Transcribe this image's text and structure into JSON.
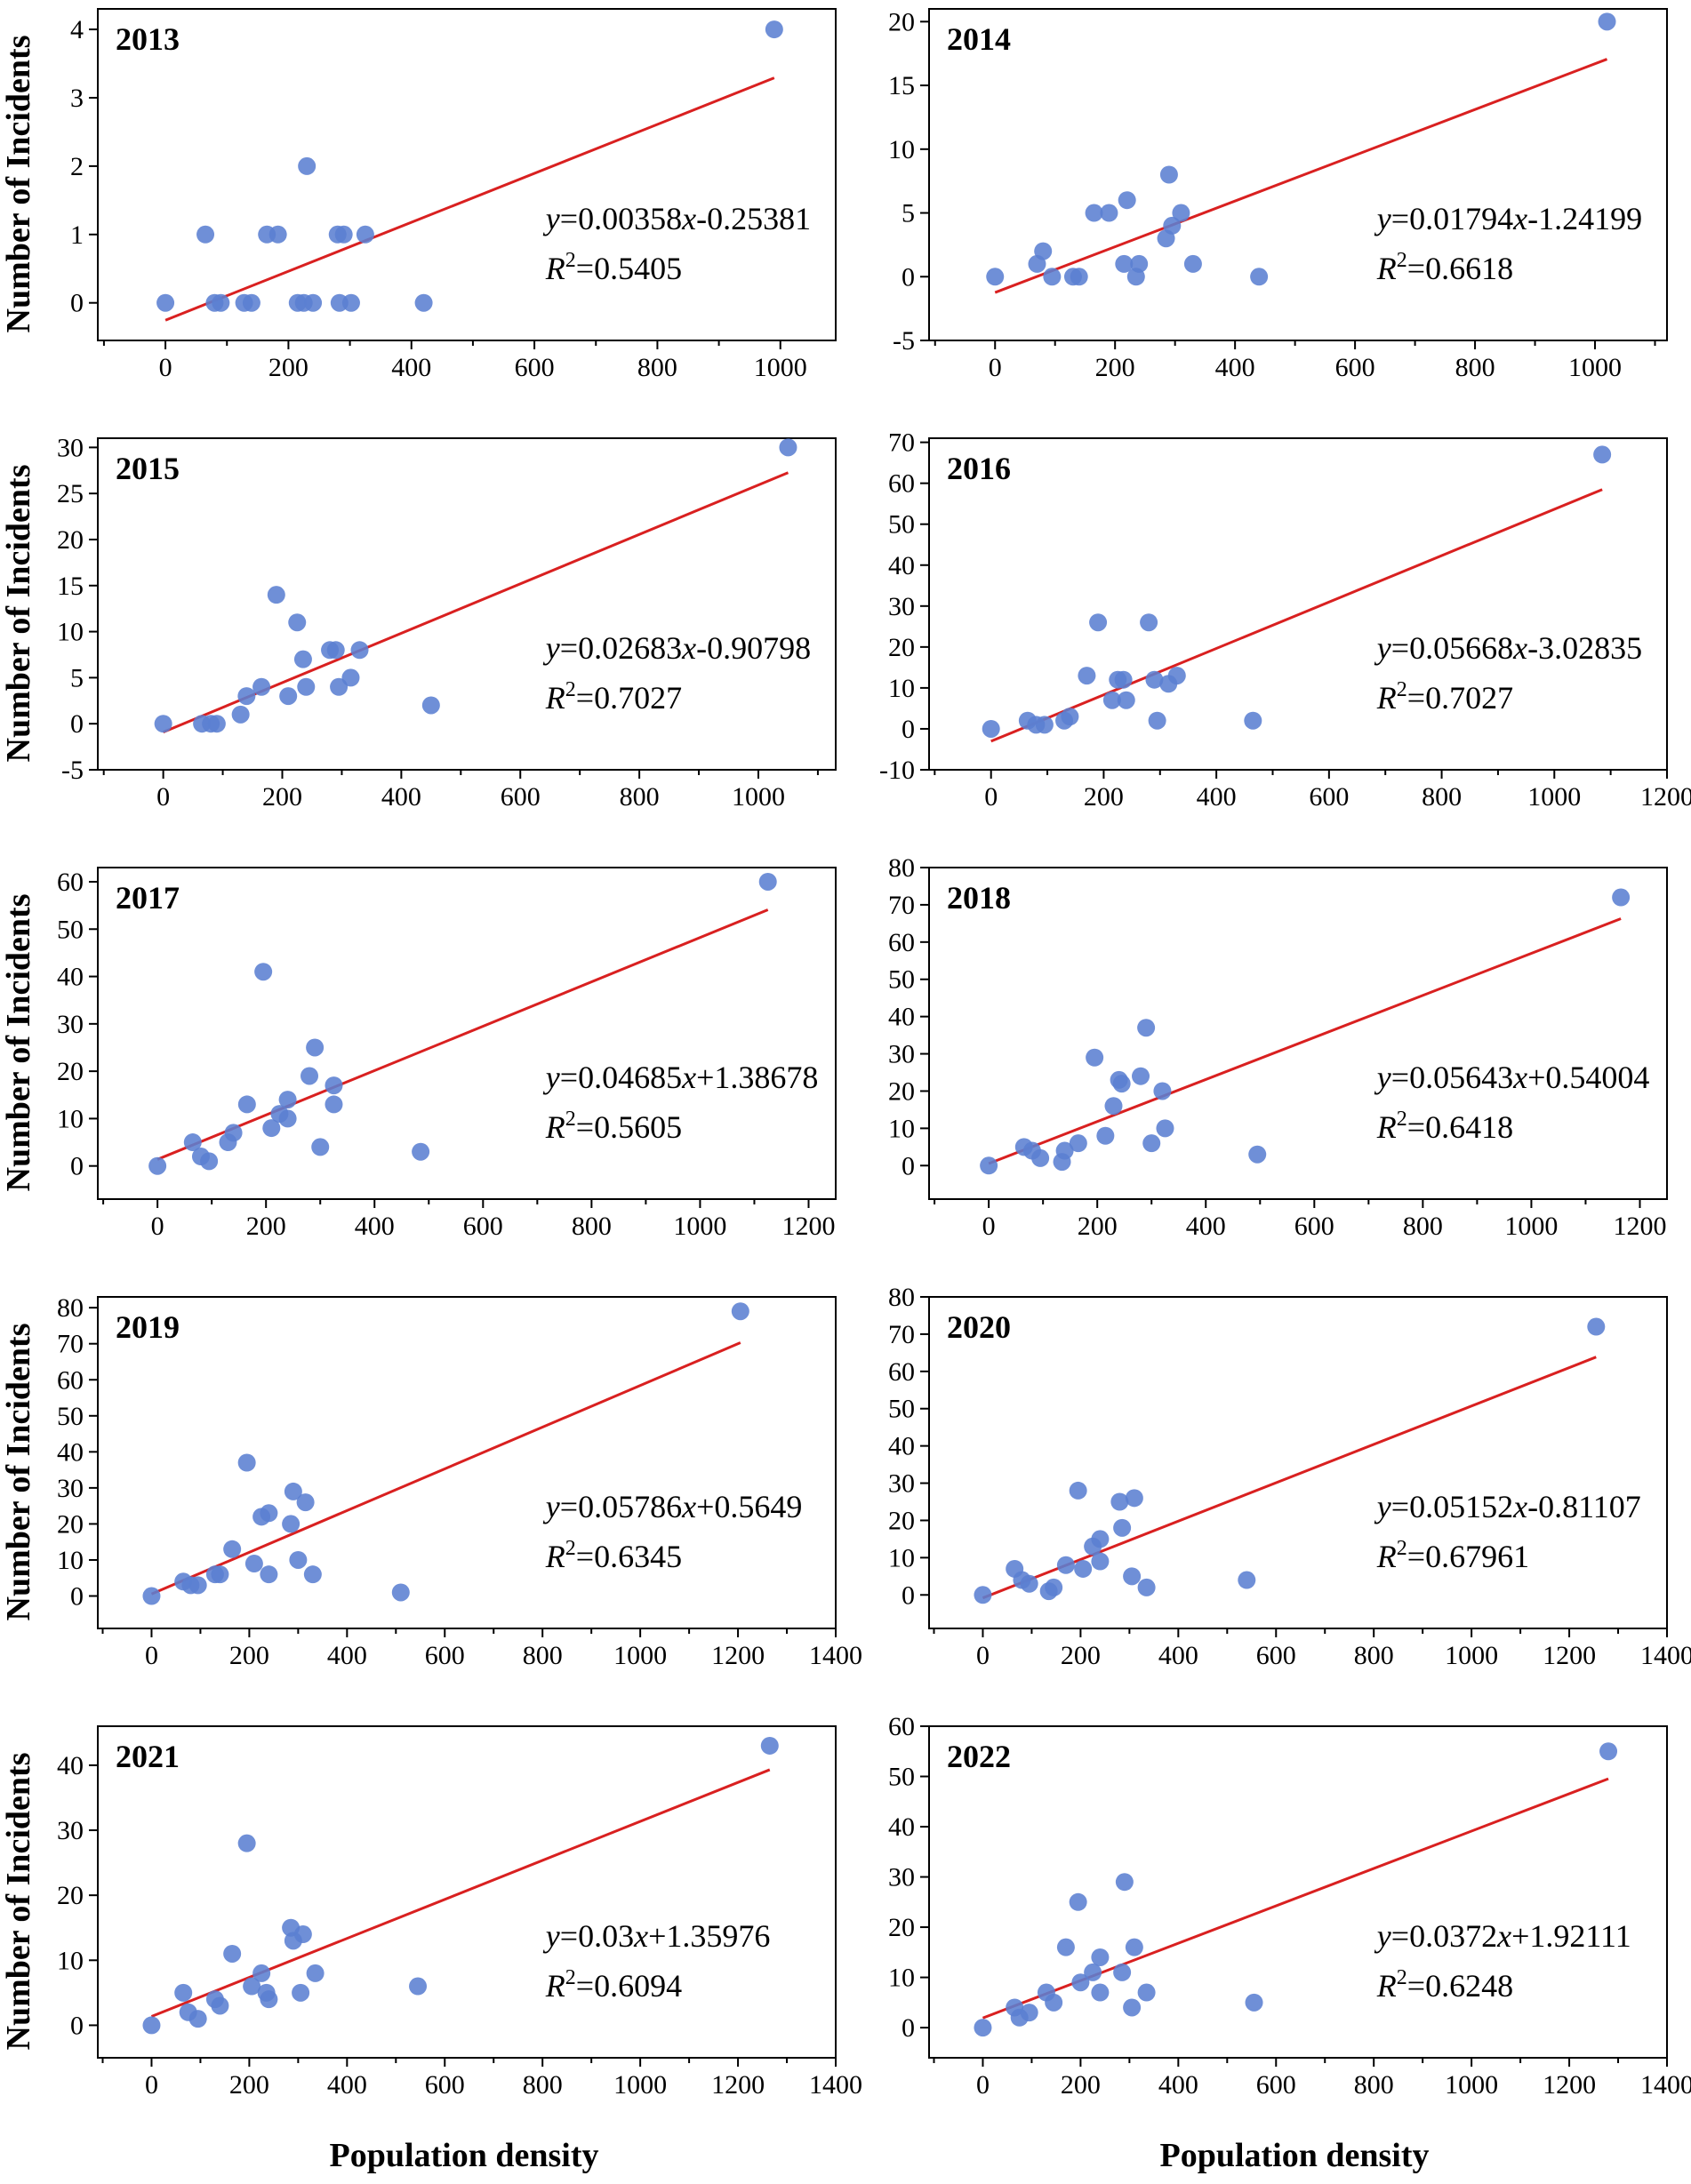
{
  "figure": {
    "ylabel": "Number of Incidents",
    "xlabel": "Population density"
  },
  "colors": {
    "point": "#5b7fd1",
    "fit": "#d92020",
    "axis": "#000000"
  },
  "chart_data": [
    {
      "type": "scatter",
      "title": "2013",
      "xlim": [
        -110,
        1090
      ],
      "ylim": [
        -0.55,
        4.3
      ],
      "xticks": [
        0,
        200,
        400,
        600,
        800,
        1000
      ],
      "yticks": [
        0,
        1,
        2,
        3,
        4
      ],
      "x": [
        0,
        65,
        80,
        90,
        128,
        140,
        165,
        183,
        215,
        225,
        230,
        240,
        280,
        283,
        290,
        302,
        325,
        420,
        990
      ],
      "y": [
        0,
        1,
        0,
        0,
        0,
        0,
        1,
        1,
        0,
        0,
        2,
        0,
        1,
        0,
        1,
        0,
        1,
        0,
        4
      ],
      "fit": {
        "slope": 0.00358,
        "intercept": -0.25381,
        "x_range": [
          0,
          990
        ]
      },
      "equation": {
        "y": "y",
        "rhs": "=0.00358",
        "x": "x",
        "tail": "-0.25381"
      },
      "r2": {
        "r": "R",
        "sup": "2",
        "value": "=0.5405"
      }
    },
    {
      "type": "scatter",
      "title": "2014",
      "xlim": [
        -110,
        1120
      ],
      "ylim": [
        -5,
        21
      ],
      "xticks": [
        0,
        200,
        400,
        600,
        800,
        1000
      ],
      "yticks": [
        -5,
        0,
        5,
        10,
        15,
        20
      ],
      "x": [
        0,
        70,
        80,
        95,
        130,
        140,
        165,
        190,
        215,
        220,
        235,
        240,
        285,
        290,
        295,
        310,
        330,
        440,
        1020
      ],
      "y": [
        0,
        1,
        2,
        0,
        0,
        0,
        5,
        5,
        1,
        6,
        0,
        1,
        3,
        8,
        4,
        5,
        1,
        0,
        20
      ],
      "fit": {
        "slope": 0.01794,
        "intercept": -1.24199,
        "x_range": [
          0,
          1020
        ]
      },
      "equation": {
        "y": "y",
        "rhs": "=0.01794",
        "x": "x",
        "tail": "-1.24199"
      },
      "r2": {
        "r": "R",
        "sup": "2",
        "value": "=0.6618"
      }
    },
    {
      "type": "scatter",
      "title": "2015",
      "xlim": [
        -110,
        1130
      ],
      "ylim": [
        -5,
        31
      ],
      "xticks": [
        0,
        200,
        400,
        600,
        800,
        1000
      ],
      "yticks": [
        -5,
        0,
        5,
        10,
        15,
        20,
        25,
        30
      ],
      "x": [
        0,
        65,
        80,
        90,
        130,
        140,
        165,
        190,
        210,
        225,
        235,
        240,
        280,
        290,
        295,
        315,
        330,
        450,
        1050
      ],
      "y": [
        0,
        0,
        0,
        0,
        1,
        3,
        4,
        14,
        3,
        11,
        7,
        4,
        8,
        8,
        4,
        5,
        8,
        2,
        30
      ],
      "fit": {
        "slope": 0.02683,
        "intercept": -0.90798,
        "x_range": [
          0,
          1050
        ]
      },
      "equation": {
        "y": "y",
        "rhs": "=0.02683",
        "x": "x",
        "tail": "-0.90798"
      },
      "r2": {
        "r": "R",
        "sup": "2",
        "value": "=0.7027"
      }
    },
    {
      "type": "scatter",
      "title": "2016",
      "xlim": [
        -110,
        1200
      ],
      "ylim": [
        -10,
        71
      ],
      "xticks": [
        0,
        200,
        400,
        600,
        800,
        1000,
        1200
      ],
      "yticks": [
        -10,
        0,
        10,
        20,
        30,
        40,
        50,
        60,
        70
      ],
      "x": [
        0,
        65,
        80,
        95,
        130,
        140,
        170,
        190,
        215,
        225,
        235,
        240,
        280,
        290,
        295,
        315,
        330,
        465,
        1085
      ],
      "y": [
        0,
        2,
        1,
        1,
        2,
        3,
        13,
        26,
        7,
        12,
        12,
        7,
        26,
        12,
        2,
        11,
        13,
        2,
        67
      ],
      "fit": {
        "slope": 0.05668,
        "intercept": -3.02835,
        "x_range": [
          0,
          1085
        ]
      },
      "equation": {
        "y": "y",
        "rhs": "=0.05668",
        "x": "x",
        "tail": "-3.02835"
      },
      "r2": {
        "r": "R",
        "sup": "2",
        "value": "=0.7027"
      }
    },
    {
      "type": "scatter",
      "title": "2017",
      "xlim": [
        -110,
        1250
      ],
      "ylim": [
        -7,
        63
      ],
      "xticks": [
        0,
        200,
        400,
        600,
        800,
        1000,
        1200
      ],
      "yticks": [
        0,
        10,
        20,
        30,
        40,
        50,
        60
      ],
      "x": [
        0,
        65,
        80,
        95,
        130,
        140,
        165,
        195,
        210,
        225,
        240,
        240,
        280,
        290,
        300,
        325,
        325,
        485,
        1125
      ],
      "y": [
        0,
        5,
        2,
        1,
        5,
        7,
        13,
        41,
        8,
        11,
        10,
        14,
        19,
        25,
        4,
        17,
        13,
        3,
        60
      ],
      "fit": {
        "slope": 0.04685,
        "intercept": 1.38678,
        "x_range": [
          0,
          1125
        ]
      },
      "equation": {
        "y": "y",
        "rhs": "=0.04685",
        "x": "x",
        "tail": "+1.38678"
      },
      "r2": {
        "r": "R",
        "sup": "2",
        "value": "=0.5605"
      }
    },
    {
      "type": "scatter",
      "title": "2018",
      "xlim": [
        -110,
        1250
      ],
      "ylim": [
        -9,
        80
      ],
      "xticks": [
        0,
        200,
        400,
        600,
        800,
        1000,
        1200
      ],
      "yticks": [
        0,
        10,
        20,
        30,
        40,
        50,
        60,
        70,
        80
      ],
      "x": [
        0,
        65,
        80,
        95,
        135,
        140,
        165,
        195,
        215,
        230,
        240,
        245,
        280,
        290,
        300,
        320,
        325,
        495,
        1165
      ],
      "y": [
        0,
        5,
        4,
        2,
        1,
        4,
        6,
        29,
        8,
        16,
        23,
        22,
        24,
        37,
        6,
        20,
        10,
        3,
        72
      ],
      "fit": {
        "slope": 0.05643,
        "intercept": 0.54004,
        "x_range": [
          0,
          1165
        ]
      },
      "equation": {
        "y": "y",
        "rhs": "=0.05643",
        "x": "x",
        "tail": "+0.54004"
      },
      "r2": {
        "r": "R",
        "sup": "2",
        "value": "=0.6418"
      }
    },
    {
      "type": "scatter",
      "title": "2019",
      "xlim": [
        -110,
        1400
      ],
      "ylim": [
        -9,
        83
      ],
      "xticks": [
        0,
        200,
        400,
        600,
        800,
        1000,
        1200,
        1400
      ],
      "yticks": [
        0,
        10,
        20,
        30,
        40,
        50,
        60,
        70,
        80
      ],
      "x": [
        0,
        65,
        80,
        95,
        130,
        140,
        165,
        195,
        210,
        225,
        240,
        240,
        285,
        290,
        300,
        315,
        330,
        510,
        1205
      ],
      "y": [
        0,
        4,
        3,
        3,
        6,
        6,
        13,
        37,
        9,
        22,
        23,
        6,
        20,
        29,
        10,
        26,
        6,
        1,
        79
      ],
      "fit": {
        "slope": 0.05786,
        "intercept": 0.5649,
        "x_range": [
          0,
          1205
        ]
      },
      "equation": {
        "y": "y",
        "rhs": "=0.05786",
        "x": "x",
        "tail": "+0.5649"
      },
      "r2": {
        "r": "R",
        "sup": "2",
        "value": "=0.6345"
      }
    },
    {
      "type": "scatter",
      "title": "2020",
      "xlim": [
        -110,
        1400
      ],
      "ylim": [
        -9,
        80
      ],
      "xticks": [
        0,
        200,
        400,
        600,
        800,
        1000,
        1200,
        1400
      ],
      "yticks": [
        0,
        10,
        20,
        30,
        40,
        50,
        60,
        70,
        80
      ],
      "x": [
        0,
        65,
        80,
        95,
        135,
        145,
        170,
        195,
        205,
        225,
        240,
        240,
        280,
        285,
        305,
        310,
        335,
        540,
        1255
      ],
      "y": [
        0,
        7,
        4,
        3,
        1,
        2,
        8,
        28,
        7,
        13,
        15,
        9,
        25,
        18,
        5,
        26,
        2,
        4,
        72
      ],
      "fit": {
        "slope": 0.05152,
        "intercept": -0.81107,
        "x_range": [
          0,
          1255
        ]
      },
      "equation": {
        "y": "y",
        "rhs": "=0.05152",
        "x": "x",
        "tail": "-0.81107"
      },
      "r2": {
        "r": "R",
        "sup": "2",
        "value": "=0.67961"
      }
    },
    {
      "type": "scatter",
      "title": "2021",
      "xlim": [
        -110,
        1400
      ],
      "ylim": [
        -5,
        46
      ],
      "xticks": [
        0,
        200,
        400,
        600,
        800,
        1000,
        1200,
        1400
      ],
      "yticks": [
        0,
        10,
        20,
        30,
        40
      ],
      "x": [
        0,
        65,
        75,
        95,
        130,
        140,
        165,
        195,
        205,
        225,
        235,
        240,
        285,
        290,
        305,
        310,
        335,
        545,
        1265
      ],
      "y": [
        0,
        5,
        2,
        1,
        4,
        3,
        11,
        28,
        6,
        8,
        5,
        4,
        15,
        13,
        5,
        14,
        8,
        6,
        43
      ],
      "fit": {
        "slope": 0.03,
        "intercept": 1.35976,
        "x_range": [
          0,
          1265
        ]
      },
      "equation": {
        "y": "y",
        "rhs": "=0.03",
        "x": "x",
        "tail": "+1.35976"
      },
      "r2": {
        "r": "R",
        "sup": "2",
        "value": "=0.6094"
      }
    },
    {
      "type": "scatter",
      "title": "2022",
      "xlim": [
        -110,
        1400
      ],
      "ylim": [
        -6,
        60
      ],
      "xticks": [
        0,
        200,
        400,
        600,
        800,
        1000,
        1200,
        1400
      ],
      "yticks": [
        0,
        10,
        20,
        30,
        40,
        50,
        60
      ],
      "x": [
        0,
        65,
        75,
        95,
        130,
        145,
        170,
        195,
        200,
        225,
        240,
        240,
        285,
        290,
        305,
        310,
        335,
        555,
        1280
      ],
      "y": [
        0,
        4,
        2,
        3,
        7,
        5,
        16,
        25,
        9,
        11,
        14,
        7,
        11,
        29,
        4,
        16,
        7,
        5,
        55
      ],
      "fit": {
        "slope": 0.0372,
        "intercept": 1.92111,
        "x_range": [
          0,
          1280
        ]
      },
      "equation": {
        "y": "y",
        "rhs": "=0.0372",
        "x": "x",
        "tail": "+1.92111"
      },
      "r2": {
        "r": "R",
        "sup": "2",
        "value": "=0.6248"
      }
    }
  ]
}
